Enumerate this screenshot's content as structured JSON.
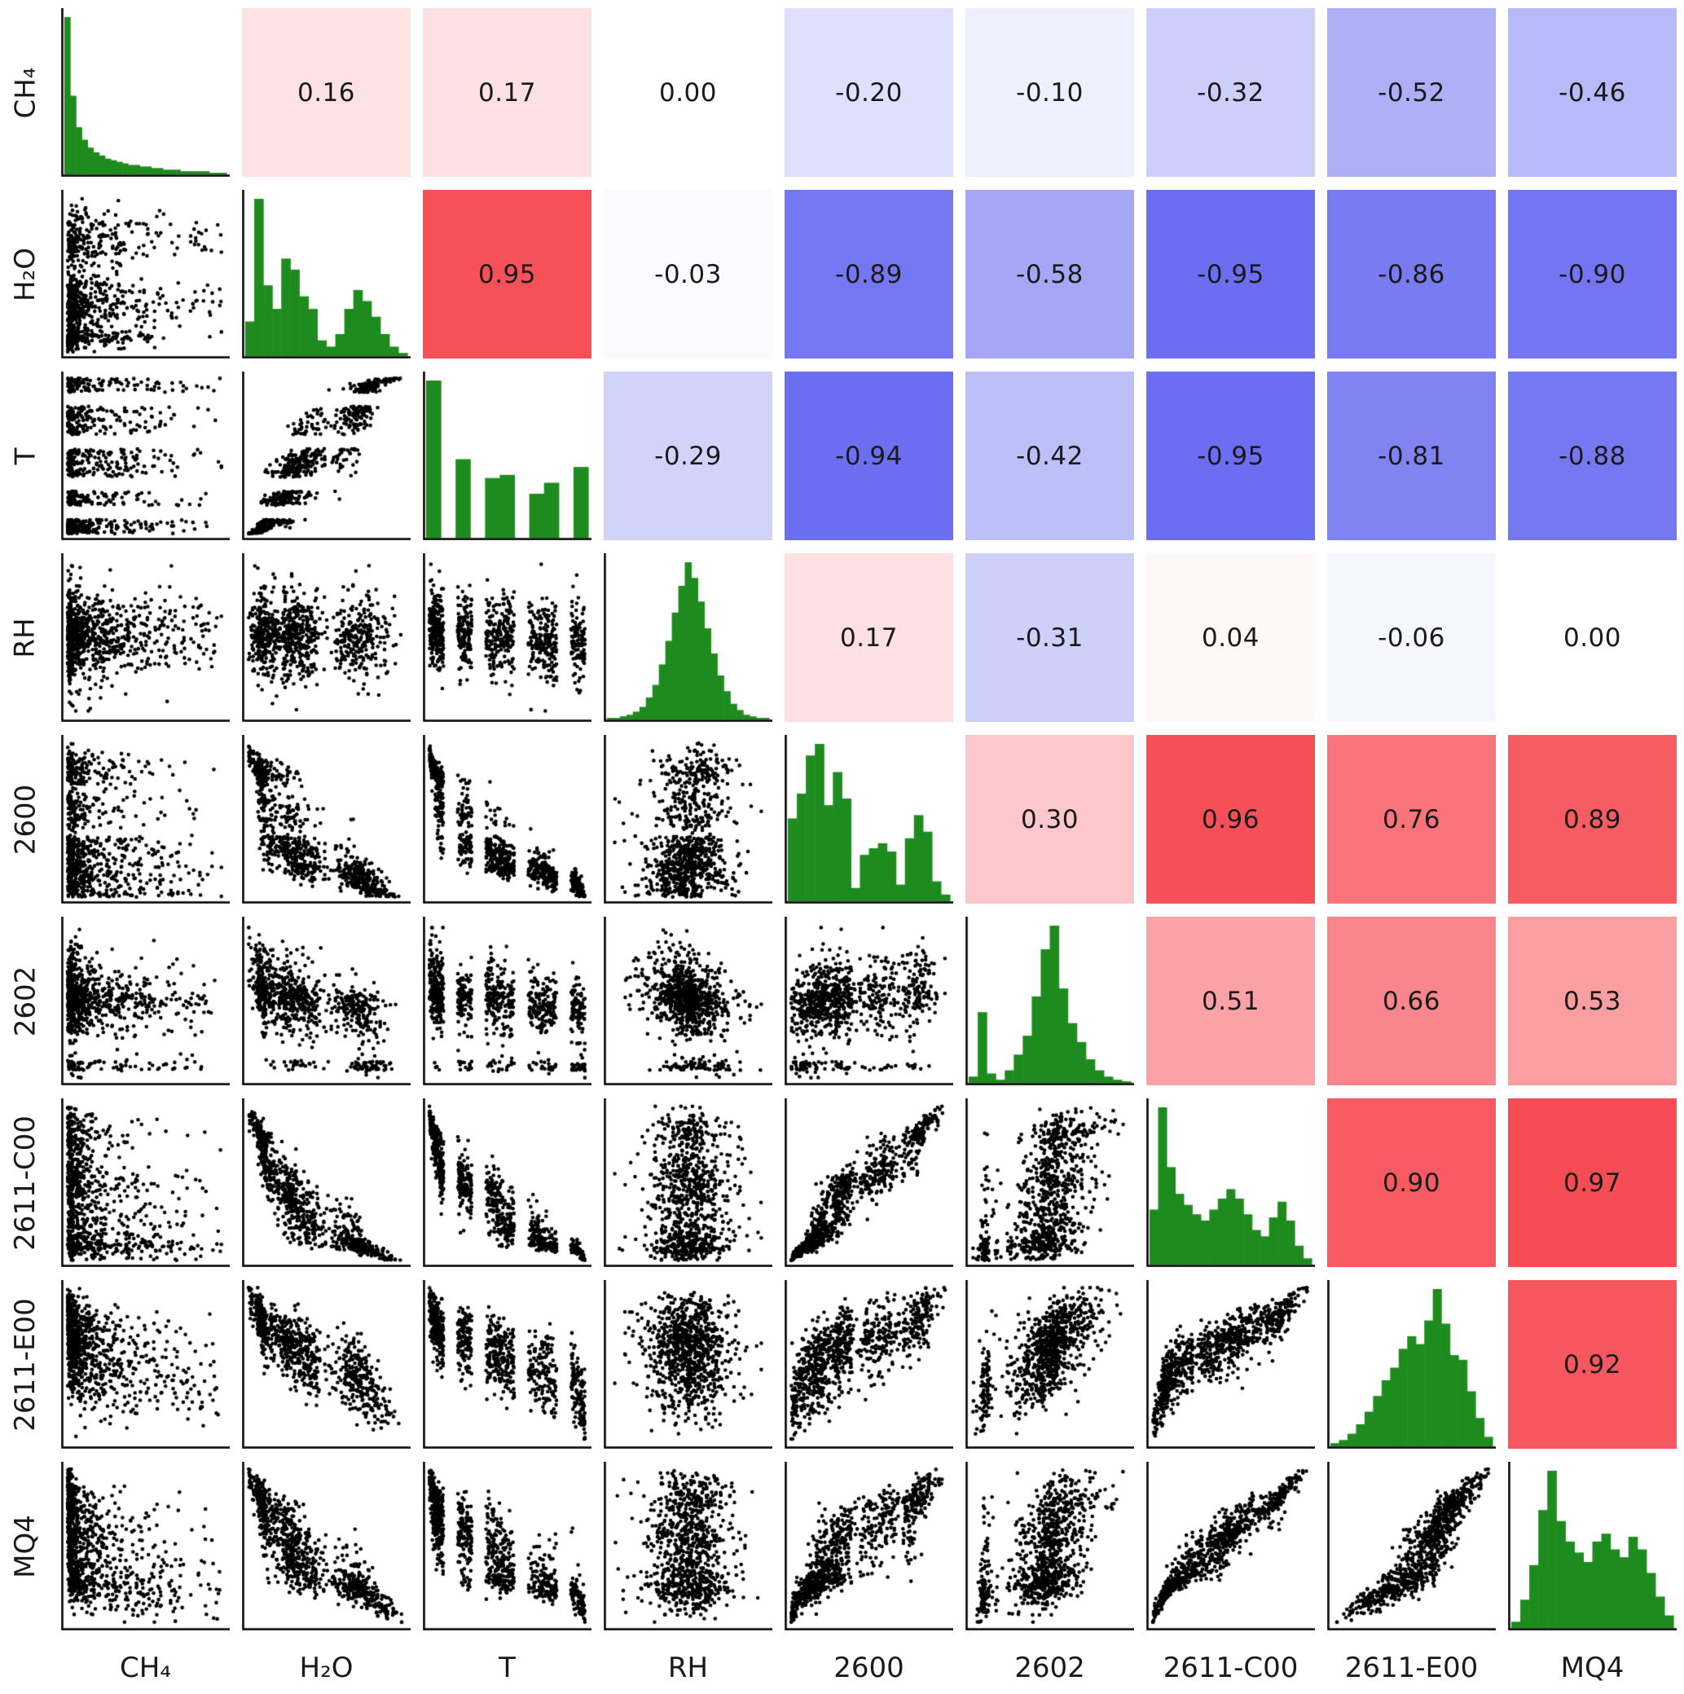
{
  "chart_data": {
    "type": "scatter",
    "subtype": "pair-plot-correlation-matrix",
    "diagonal": "histogram",
    "lower_triangle": "scatter",
    "upper_triangle": "pearson-correlation",
    "grid": false,
    "variables": [
      "CH₄",
      "H₂O",
      "T",
      "RH",
      "2600",
      "2602",
      "2611-C00",
      "2611-E00",
      "MQ4"
    ],
    "correlations": [
      [
        1.0,
        0.16,
        0.17,
        0.0,
        -0.2,
        -0.1,
        -0.32,
        -0.52,
        -0.46
      ],
      [
        0.16,
        1.0,
        0.95,
        -0.03,
        -0.89,
        -0.58,
        -0.95,
        -0.86,
        -0.9
      ],
      [
        0.17,
        0.95,
        1.0,
        -0.29,
        -0.94,
        -0.42,
        -0.95,
        -0.81,
        -0.88
      ],
      [
        0.0,
        -0.03,
        -0.29,
        1.0,
        0.17,
        -0.31,
        0.04,
        -0.06,
        0.0
      ],
      [
        -0.2,
        -0.89,
        -0.94,
        0.17,
        1.0,
        0.3,
        0.96,
        0.76,
        0.89
      ],
      [
        -0.1,
        -0.58,
        -0.42,
        -0.31,
        0.3,
        1.0,
        0.51,
        0.66,
        0.53
      ],
      [
        -0.32,
        -0.95,
        -0.95,
        0.04,
        0.96,
        0.51,
        1.0,
        0.9,
        0.97
      ],
      [
        -0.52,
        -0.86,
        -0.81,
        -0.06,
        0.76,
        0.66,
        0.9,
        1.0,
        0.92
      ],
      [
        -0.46,
        -0.9,
        -0.88,
        0.0,
        0.89,
        0.53,
        0.97,
        0.92,
        1.0
      ]
    ],
    "correlation_labels": [
      [
        "",
        "0.16",
        "0.17",
        "0.00",
        "-0.20",
        "-0.10",
        "-0.32",
        "-0.52",
        "-0.46"
      ],
      [
        "",
        "",
        "0.95",
        "-0.03",
        "-0.89",
        "-0.58",
        "-0.95",
        "-0.86",
        "-0.90"
      ],
      [
        "",
        "",
        "",
        "-0.29",
        "-0.94",
        "-0.42",
        "-0.95",
        "-0.81",
        "-0.88"
      ],
      [
        "",
        "",
        "",
        "",
        "0.17",
        "-0.31",
        "0.04",
        "-0.06",
        "0.00"
      ],
      [
        "",
        "",
        "",
        "",
        "",
        "0.30",
        "0.96",
        "0.76",
        "0.89"
      ],
      [
        "",
        "",
        "",
        "",
        "",
        "",
        "0.51",
        "0.66",
        "0.53"
      ],
      [
        "",
        "",
        "",
        "",
        "",
        "",
        "",
        "0.90",
        "0.97"
      ],
      [
        "",
        "",
        "",
        "",
        "",
        "",
        "",
        "",
        "0.92"
      ],
      [
        "",
        "",
        "",
        "",
        "",
        "",
        "",
        "",
        ""
      ]
    ],
    "histograms": [
      [
        100,
        50,
        30,
        22,
        17,
        14,
        12,
        10,
        9,
        8,
        7,
        6,
        6,
        5,
        5,
        4,
        4,
        3,
        3,
        3,
        2,
        2,
        2,
        2,
        2,
        1,
        1,
        1
      ],
      [
        22,
        100,
        45,
        30,
        62,
        55,
        38,
        30,
        10,
        6,
        14,
        30,
        42,
        35,
        25,
        14,
        6,
        2
      ],
      [
        100,
        0,
        50,
        0,
        38,
        40,
        0,
        28,
        35,
        0,
        45
      ],
      [
        1,
        1,
        2,
        3,
        5,
        8,
        14,
        22,
        35,
        50,
        68,
        85,
        100,
        90,
        75,
        58,
        42,
        28,
        18,
        10,
        6,
        3,
        2,
        1,
        1
      ],
      [
        50,
        65,
        88,
        95,
        58,
        78,
        62,
        8,
        28,
        32,
        35,
        30,
        10,
        38,
        52,
        42,
        12,
        4
      ],
      [
        4,
        45,
        6,
        2,
        8,
        18,
        30,
        55,
        85,
        100,
        60,
        38,
        26,
        15,
        8,
        4,
        2,
        1
      ],
      [
        35,
        100,
        62,
        45,
        38,
        32,
        28,
        35,
        42,
        48,
        42,
        32,
        22,
        18,
        30,
        40,
        28,
        12,
        4
      ],
      [
        2,
        4,
        8,
        14,
        22,
        32,
        42,
        50,
        62,
        70,
        65,
        80,
        100,
        78,
        58,
        55,
        35,
        18,
        6
      ],
      [
        4,
        18,
        40,
        75,
        100,
        68,
        55,
        48,
        42,
        55,
        60,
        50,
        45,
        58,
        50,
        35,
        20,
        8
      ]
    ],
    "colors": {
      "positive_base": "#f64850",
      "negative_base": "#6366f0",
      "histogram_fill": "#1e8b1e",
      "scatter_points": "#000000",
      "axis": "#000000",
      "text": "#1a1a1a",
      "background": "#ffffff"
    }
  }
}
